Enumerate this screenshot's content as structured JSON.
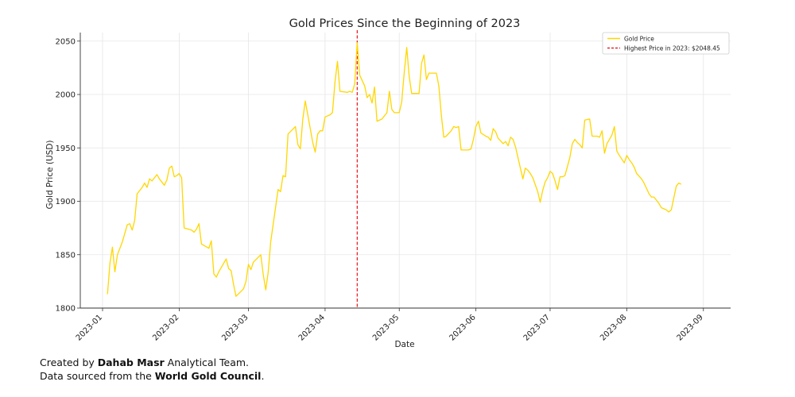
{
  "chart_data": {
    "type": "line",
    "title": "Gold Prices Since the Beginning of 2023",
    "xlabel": "Date",
    "ylabel": "Gold Price (USD)",
    "xlim": [
      "2022-12-23",
      "2023-09-12"
    ],
    "ylim": [
      1800,
      2058
    ],
    "yticks": [
      1800,
      1850,
      1900,
      1950,
      2000,
      2050
    ],
    "xticks": [
      {
        "date": "2023-01-01",
        "label": "2023-01"
      },
      {
        "date": "2023-02-01",
        "label": "2023-02"
      },
      {
        "date": "2023-03-01",
        "label": "2023-03"
      },
      {
        "date": "2023-04-01",
        "label": "2023-04"
      },
      {
        "date": "2023-05-01",
        "label": "2023-05"
      },
      {
        "date": "2023-06-01",
        "label": "2023-06"
      },
      {
        "date": "2023-07-01",
        "label": "2023-07"
      },
      {
        "date": "2023-08-01",
        "label": "2023-08"
      },
      {
        "date": "2023-09-01",
        "label": "2023-09"
      }
    ],
    "grid": true,
    "legend_position": "top-right",
    "series": [
      {
        "name": "Gold Price",
        "color": "#FFD700",
        "points": [
          [
            "2023-01-03",
            1813
          ],
          [
            "2023-01-04",
            1842
          ],
          [
            "2023-01-05",
            1857
          ],
          [
            "2023-01-06",
            1834
          ],
          [
            "2023-01-07",
            1850
          ],
          [
            "2023-01-09",
            1862
          ],
          [
            "2023-01-11",
            1878
          ],
          [
            "2023-01-12",
            1879
          ],
          [
            "2023-01-13",
            1873
          ],
          [
            "2023-01-14",
            1882
          ],
          [
            "2023-01-15",
            1907
          ],
          [
            "2023-01-17",
            1913
          ],
          [
            "2023-01-18",
            1917
          ],
          [
            "2023-01-19",
            1913
          ],
          [
            "2023-01-20",
            1921
          ],
          [
            "2023-01-21",
            1919
          ],
          [
            "2023-01-23",
            1925
          ],
          [
            "2023-01-24",
            1921
          ],
          [
            "2023-01-26",
            1915
          ],
          [
            "2023-01-27",
            1920
          ],
          [
            "2023-01-28",
            1931
          ],
          [
            "2023-01-29",
            1933
          ],
          [
            "2023-01-30",
            1923
          ],
          [
            "2023-01-31",
            1924
          ],
          [
            "2023-02-01",
            1926
          ],
          [
            "2023-02-02",
            1922
          ],
          [
            "2023-02-03",
            1875
          ],
          [
            "2023-02-06",
            1873
          ],
          [
            "2023-02-07",
            1871
          ],
          [
            "2023-02-08",
            1874
          ],
          [
            "2023-02-09",
            1879
          ],
          [
            "2023-02-10",
            1860
          ],
          [
            "2023-02-13",
            1856
          ],
          [
            "2023-02-14",
            1863
          ],
          [
            "2023-02-15",
            1832
          ],
          [
            "2023-02-16",
            1829
          ],
          [
            "2023-02-17",
            1834
          ],
          [
            "2023-02-20",
            1846
          ],
          [
            "2023-02-21",
            1837
          ],
          [
            "2023-02-22",
            1835
          ],
          [
            "2023-02-23",
            1822
          ],
          [
            "2023-02-24",
            1811
          ],
          [
            "2023-02-27",
            1818
          ],
          [
            "2023-02-28",
            1825
          ],
          [
            "2023-03-01",
            1841
          ],
          [
            "2023-03-02",
            1836
          ],
          [
            "2023-03-03",
            1843
          ],
          [
            "2023-03-06",
            1850
          ],
          [
            "2023-03-07",
            1831
          ],
          [
            "2023-03-08",
            1817
          ],
          [
            "2023-03-09",
            1834
          ],
          [
            "2023-03-10",
            1862
          ],
          [
            "2023-03-13",
            1911
          ],
          [
            "2023-03-14",
            1909
          ],
          [
            "2023-03-15",
            1924
          ],
          [
            "2023-03-16",
            1923
          ],
          [
            "2023-03-17",
            1963
          ],
          [
            "2023-03-20",
            1970
          ],
          [
            "2023-03-21",
            1953
          ],
          [
            "2023-03-22",
            1949
          ],
          [
            "2023-03-23",
            1977
          ],
          [
            "2023-03-24",
            1994
          ],
          [
            "2023-03-27",
            1955
          ],
          [
            "2023-03-28",
            1946
          ],
          [
            "2023-03-29",
            1963
          ],
          [
            "2023-03-30",
            1966
          ],
          [
            "2023-03-31",
            1966
          ],
          [
            "2023-04-01",
            1979
          ],
          [
            "2023-04-03",
            1981
          ],
          [
            "2023-04-04",
            1983
          ],
          [
            "2023-04-05",
            2012
          ],
          [
            "2023-04-06",
            2031
          ],
          [
            "2023-04-07",
            2003
          ],
          [
            "2023-04-10",
            2002
          ],
          [
            "2023-04-11",
            2003
          ],
          [
            "2023-04-12",
            2002
          ],
          [
            "2023-04-13",
            2010
          ],
          [
            "2023-04-14",
            2048.45
          ],
          [
            "2023-04-15",
            2018
          ],
          [
            "2023-04-17",
            2008
          ],
          [
            "2023-04-18",
            1997
          ],
          [
            "2023-04-19",
            2000
          ],
          [
            "2023-04-20",
            1992
          ],
          [
            "2023-04-21",
            2007
          ],
          [
            "2023-04-22",
            1975
          ],
          [
            "2023-04-24",
            1977
          ],
          [
            "2023-04-25",
            1980
          ],
          [
            "2023-04-26",
            1983
          ],
          [
            "2023-04-27",
            2003
          ],
          [
            "2023-04-28",
            1986
          ],
          [
            "2023-04-29",
            1983
          ],
          [
            "2023-05-01",
            1983
          ],
          [
            "2023-05-02",
            1993
          ],
          [
            "2023-05-03",
            2020
          ],
          [
            "2023-05-04",
            2044
          ],
          [
            "2023-05-05",
            2017
          ],
          [
            "2023-05-06",
            2001
          ],
          [
            "2023-05-08",
            2001
          ],
          [
            "2023-05-09",
            2001
          ],
          [
            "2023-05-10",
            2029
          ],
          [
            "2023-05-11",
            2037
          ],
          [
            "2023-05-12",
            2014
          ],
          [
            "2023-05-13",
            2020
          ],
          [
            "2023-05-15",
            2020
          ],
          [
            "2023-05-16",
            2020
          ],
          [
            "2023-05-17",
            2008
          ],
          [
            "2023-05-18",
            1981
          ],
          [
            "2023-05-19",
            1960
          ],
          [
            "2023-05-20",
            1961
          ],
          [
            "2023-05-22",
            1966
          ],
          [
            "2023-05-23",
            1970
          ],
          [
            "2023-05-24",
            1969
          ],
          [
            "2023-05-25",
            1970
          ],
          [
            "2023-05-26",
            1948
          ],
          [
            "2023-05-29",
            1948
          ],
          [
            "2023-05-30",
            1949
          ],
          [
            "2023-05-31",
            1958
          ],
          [
            "2023-06-01",
            1970
          ],
          [
            "2023-06-02",
            1975
          ],
          [
            "2023-06-03",
            1964
          ],
          [
            "2023-06-05",
            1961
          ],
          [
            "2023-06-06",
            1960
          ],
          [
            "2023-06-07",
            1957
          ],
          [
            "2023-06-08",
            1968
          ],
          [
            "2023-06-09",
            1965
          ],
          [
            "2023-06-10",
            1959
          ],
          [
            "2023-06-12",
            1954
          ],
          [
            "2023-06-13",
            1956
          ],
          [
            "2023-06-14",
            1952
          ],
          [
            "2023-06-15",
            1960
          ],
          [
            "2023-06-16",
            1958
          ],
          [
            "2023-06-17",
            1951
          ],
          [
            "2023-06-19",
            1931
          ],
          [
            "2023-06-20",
            1921
          ],
          [
            "2023-06-21",
            1931
          ],
          [
            "2023-06-22",
            1929
          ],
          [
            "2023-06-23",
            1926
          ],
          [
            "2023-06-24",
            1922
          ],
          [
            "2023-06-26",
            1909
          ],
          [
            "2023-06-27",
            1899
          ],
          [
            "2023-06-28",
            1910
          ],
          [
            "2023-06-29",
            1918
          ],
          [
            "2023-06-30",
            1922
          ],
          [
            "2023-07-01",
            1928
          ],
          [
            "2023-07-02",
            1926
          ],
          [
            "2023-07-03",
            1919
          ],
          [
            "2023-07-04",
            1911
          ],
          [
            "2023-07-05",
            1923
          ],
          [
            "2023-07-06",
            1923
          ],
          [
            "2023-07-07",
            1924
          ],
          [
            "2023-07-09",
            1941
          ],
          [
            "2023-07-10",
            1954
          ],
          [
            "2023-07-11",
            1958
          ],
          [
            "2023-07-12",
            1955
          ],
          [
            "2023-07-13",
            1953
          ],
          [
            "2023-07-14",
            1950
          ],
          [
            "2023-07-15",
            1976
          ],
          [
            "2023-07-17",
            1977
          ],
          [
            "2023-07-18",
            1961
          ],
          [
            "2023-07-20",
            1961
          ],
          [
            "2023-07-21",
            1960
          ],
          [
            "2023-07-22",
            1966
          ],
          [
            "2023-07-23",
            1945
          ],
          [
            "2023-07-24",
            1954
          ],
          [
            "2023-07-26",
            1962
          ],
          [
            "2023-07-27",
            1970
          ],
          [
            "2023-07-28",
            1947
          ],
          [
            "2023-07-29",
            1943
          ],
          [
            "2023-07-31",
            1936
          ],
          [
            "2023-08-01",
            1943
          ],
          [
            "2023-08-02",
            1939
          ],
          [
            "2023-08-03",
            1936
          ],
          [
            "2023-08-04",
            1932
          ],
          [
            "2023-08-05",
            1926
          ],
          [
            "2023-08-07",
            1921
          ],
          [
            "2023-08-08",
            1917
          ],
          [
            "2023-08-09",
            1912
          ],
          [
            "2023-08-10",
            1907
          ],
          [
            "2023-08-11",
            1904
          ],
          [
            "2023-08-12",
            1904
          ],
          [
            "2023-08-14",
            1898
          ],
          [
            "2023-08-15",
            1894
          ],
          [
            "2023-08-16",
            1893
          ],
          [
            "2023-08-17",
            1892
          ],
          [
            "2023-08-18",
            1890
          ],
          [
            "2023-08-19",
            1892
          ],
          [
            "2023-08-21",
            1914
          ],
          [
            "2023-08-22",
            1917
          ],
          [
            "2023-08-23",
            1916
          ]
        ]
      }
    ],
    "reference_line": {
      "orientation": "vertical",
      "date": "2023-04-14",
      "name": "Highest Price in 2023: $2048.45",
      "color": "#e8242a"
    }
  },
  "footer": {
    "line1_prefix": "Created by ",
    "line1_bold": "Dahab Masr",
    "line1_suffix": " Analytical Team.",
    "line2_prefix": "Data sourced from the ",
    "line2_bold": "World Gold Council",
    "line2_suffix": "."
  }
}
